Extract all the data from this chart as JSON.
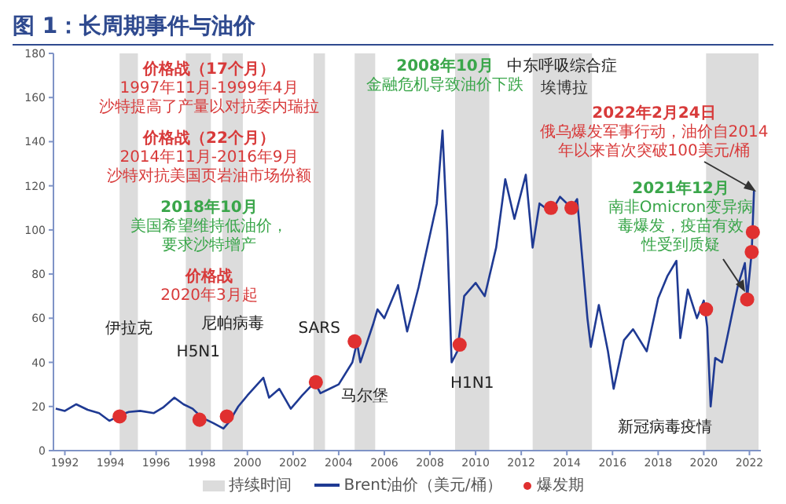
{
  "chart_data": {
    "type": "line",
    "title": "图 1：长周期事件与油价",
    "xlim": [
      1991.5,
      2022.5
    ],
    "xticks": [
      1992,
      1994,
      1996,
      1998,
      2000,
      2002,
      2004,
      2006,
      2008,
      2010,
      2012,
      2014,
      2016,
      2018,
      2020,
      2022
    ],
    "ylim": [
      0,
      180
    ],
    "yticks": [
      0,
      20,
      40,
      60,
      80,
      100,
      120,
      140,
      160,
      180
    ],
    "legend": "bottom",
    "series": [
      {
        "name": "Brent油价（美元/桶）",
        "color": "#1f3a93",
        "marker": "none",
        "x": [
          1991.6,
          1992.0,
          1992.5,
          1993.0,
          1993.5,
          1993.95,
          1994.4,
          1994.8,
          1995.3,
          1995.9,
          1996.3,
          1996.8,
          1997.2,
          1997.6,
          1998.0,
          1998.5,
          1998.95,
          1999.2,
          1999.6,
          2000.0,
          2000.7,
          2000.95,
          2001.4,
          2001.9,
          2002.4,
          2002.95,
          2003.2,
          2003.6,
          2004.0,
          2004.6,
          2004.8,
          2004.95,
          2005.5,
          2005.7,
          2006.0,
          2006.6,
          2007.0,
          2007.5,
          2007.9,
          2008.3,
          2008.55,
          2008.75,
          2008.95,
          2009.2,
          2009.5,
          2010.0,
          2010.4,
          2010.9,
          2011.3,
          2011.7,
          2012.2,
          2012.5,
          2012.8,
          2013.3,
          2013.7,
          2014.2,
          2014.45,
          2014.9,
          2015.05,
          2015.4,
          2015.8,
          2016.05,
          2016.5,
          2016.9,
          2017.5,
          2018.0,
          2018.4,
          2018.8,
          2018.97,
          2019.3,
          2019.7,
          2020.0,
          2020.15,
          2020.3,
          2020.5,
          2020.8,
          2021.1,
          2021.5,
          2021.8,
          2021.9,
          2022.1,
          2022.2
        ],
        "values": [
          19,
          18,
          21,
          18.5,
          17,
          13.5,
          16,
          17.5,
          18,
          17,
          19.5,
          24,
          21,
          19,
          15,
          12.5,
          10,
          13,
          20,
          25,
          33,
          24,
          28,
          19,
          25,
          31,
          26,
          28,
          30,
          40,
          49,
          40,
          57,
          64,
          60,
          75,
          54,
          74,
          93,
          112,
          145,
          100,
          40,
          45,
          70,
          76,
          70,
          92,
          123,
          105,
          125,
          92,
          112,
          108,
          115,
          110,
          114,
          60,
          47,
          66,
          45,
          28,
          50,
          55,
          45,
          69,
          79,
          86,
          51,
          73,
          60,
          68,
          56,
          20,
          42,
          40,
          55,
          75,
          85,
          69,
          90,
          118
        ]
      },
      {
        "name": "爆发期",
        "type": "scatter",
        "color": "#e03030",
        "marker": "circle",
        "x": [
          1994.4,
          1997.9,
          1999.1,
          2003.0,
          2004.7,
          2009.3,
          2013.3,
          2014.2,
          2020.1,
          2021.9,
          2022.1,
          2022.15
        ],
        "values": [
          15.5,
          14,
          15.5,
          31,
          49.5,
          48,
          110,
          110,
          64,
          68.5,
          90,
          99
        ]
      }
    ],
    "bands": [
      {
        "axis": "x",
        "from": 1994.4,
        "to": 1995.2,
        "label": "伊拉克",
        "color": "#dcdcdc"
      },
      {
        "axis": "x",
        "from": 1997.3,
        "to": 1998.4,
        "label": "H5N1",
        "color": "#dcdcdc"
      },
      {
        "axis": "x",
        "from": 1998.9,
        "to": 1999.8,
        "label": "尼帕病毒",
        "color": "#dcdcdc"
      },
      {
        "axis": "x",
        "from": 2002.9,
        "to": 2003.4,
        "label": "SARS",
        "color": "#dcdcdc"
      },
      {
        "axis": "x",
        "from": 2004.7,
        "to": 2005.6,
        "label": "马尔堡",
        "color": "#dcdcdc"
      },
      {
        "axis": "x",
        "from": 2009.1,
        "to": 2010.6,
        "label": "H1N1",
        "color": "#dcdcdc"
      },
      {
        "axis": "x",
        "from": 2012.5,
        "to": 2015.1,
        "label": "中东呼吸综合症",
        "color": "#dcdcdc"
      },
      {
        "axis": "x",
        "from": 2020.1,
        "to": 2022.4,
        "label": "新冠病毒疫情",
        "color": "#dcdcdc"
      }
    ],
    "annotations": [
      "持续时间",
      "价格战（17个月）",
      "1997年11月-1999年4月",
      "沙特提高了产量以对抗委内瑞拉",
      "2008年10月",
      "金融危机导致油价下跌",
      "2022年2月24日",
      "俄乌爆发军事行动，油价自2014",
      "年以来首次突破100美元/桶",
      "价格战",
      "2020年3月起",
      "价格战（22个月）",
      "2014年11月-2016年9月",
      "沙特对抗美国页岩油市场份额",
      "2018年10月",
      "美国希望维持低油价，",
      "要求沙特增产",
      "2021年12月",
      "南非Omicron变异病",
      "毒爆发，疫苗有效",
      "性受到质疑",
      "埃博拉"
    ]
  }
}
